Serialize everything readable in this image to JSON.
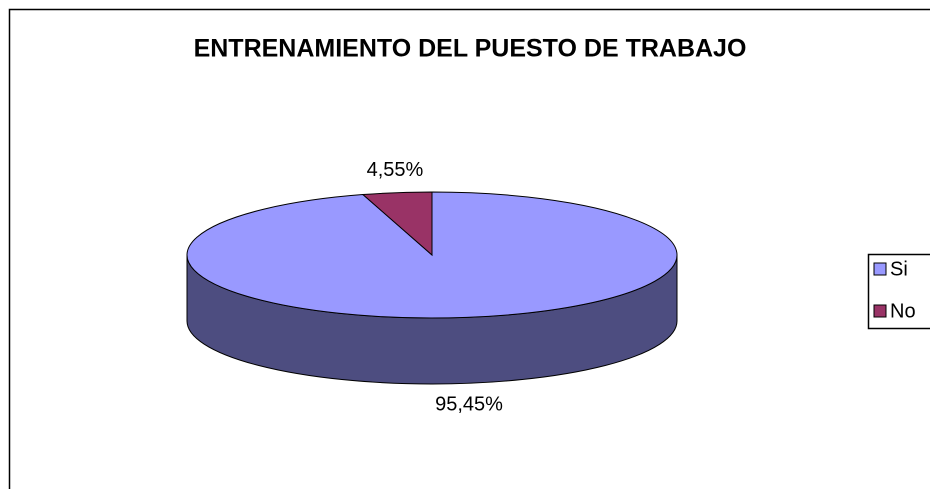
{
  "chart_data": {
    "type": "pie",
    "title": "ENTRENAMIENTO DEL PUESTO DE TRABAJO",
    "categories": [
      "Si",
      "No"
    ],
    "values": [
      95.45,
      4.55
    ],
    "value_labels": [
      "95,45%",
      "4,55%"
    ],
    "colors": [
      "#9999ff",
      "#993366"
    ],
    "legend": "right",
    "three_d": true
  }
}
